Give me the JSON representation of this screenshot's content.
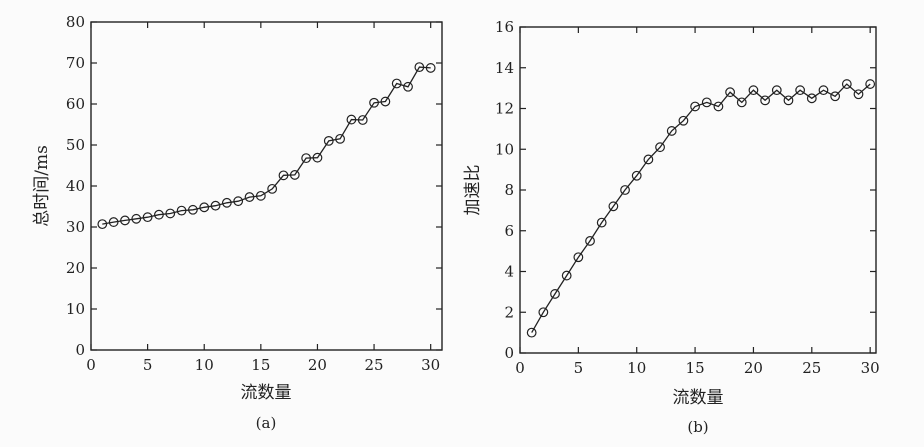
{
  "chart_data": [
    {
      "type": "line",
      "caption": "(a)",
      "xlabel": "流数量",
      "ylabel": "总时间/ms",
      "xlim": [
        0,
        31
      ],
      "ylim": [
        0,
        80
      ],
      "xticks": [
        0,
        5,
        10,
        15,
        20,
        25,
        30
      ],
      "yticks": [
        0,
        10,
        20,
        30,
        40,
        50,
        60,
        70,
        80
      ],
      "marker": "circle",
      "grid": false,
      "series": [
        {
          "x": [
            1,
            2,
            3,
            4,
            5,
            6,
            7,
            8,
            9,
            10,
            11,
            12,
            13,
            14,
            15,
            16,
            17,
            18,
            19,
            20,
            21,
            22,
            23,
            24,
            25,
            26,
            27,
            28,
            29,
            30
          ],
          "values": [
            30.7,
            31.2,
            31.6,
            32.0,
            32.4,
            33.0,
            33.3,
            34.0,
            34.2,
            34.8,
            35.2,
            35.9,
            36.3,
            37.3,
            37.6,
            39.3,
            42.6,
            42.7,
            46.8,
            46.9,
            51.0,
            51.5,
            56.2,
            56.1,
            60.3,
            60.6,
            65.0,
            64.2,
            69.0,
            68.8
          ]
        }
      ]
    },
    {
      "type": "line",
      "caption": "(b)",
      "xlabel": "流数量",
      "ylabel": "加速比",
      "xlim": [
        0,
        30.5
      ],
      "ylim": [
        0,
        16
      ],
      "xticks": [
        0,
        5,
        10,
        15,
        20,
        25,
        30
      ],
      "yticks": [
        0,
        2,
        4,
        6,
        8,
        10,
        12,
        14,
        16
      ],
      "marker": "circle",
      "grid": false,
      "series": [
        {
          "x": [
            1,
            2,
            3,
            4,
            5,
            6,
            7,
            8,
            9,
            10,
            11,
            12,
            13,
            14,
            15,
            16,
            17,
            18,
            19,
            20,
            21,
            22,
            23,
            24,
            25,
            26,
            27,
            28,
            29,
            30
          ],
          "values": [
            1.0,
            2.0,
            2.9,
            3.8,
            4.7,
            5.5,
            6.4,
            7.2,
            8.0,
            8.7,
            9.5,
            10.1,
            10.9,
            11.4,
            12.1,
            12.3,
            12.1,
            12.8,
            12.3,
            12.9,
            12.4,
            12.9,
            12.4,
            12.9,
            12.5,
            12.9,
            12.6,
            13.2,
            12.7,
            13.2
          ]
        }
      ]
    }
  ]
}
